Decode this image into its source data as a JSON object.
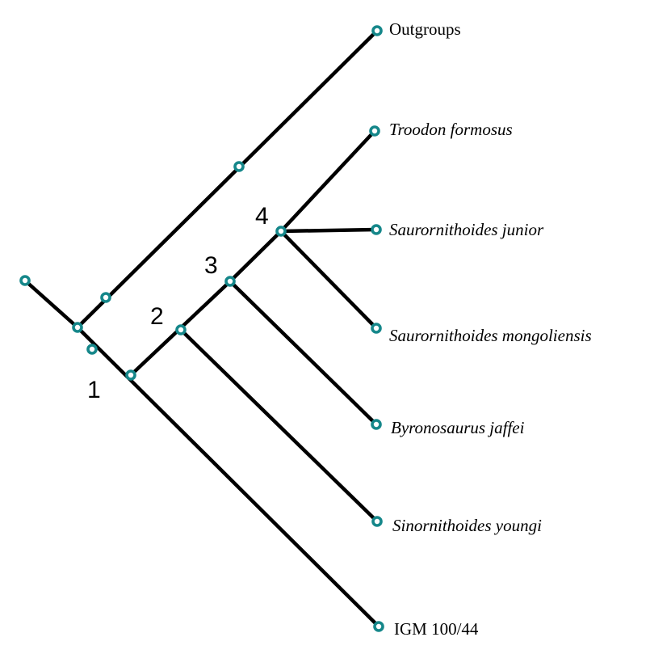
{
  "diagram": {
    "type": "cladogram",
    "colors": {
      "branch": "#000000",
      "node": "#15878a"
    },
    "taxa": [
      {
        "id": "outgroups",
        "label": "Outgroups",
        "italic": false
      },
      {
        "id": "troodon",
        "label": "Troodon formosus",
        "italic": true
      },
      {
        "id": "s-junior",
        "label": "Saurornithoides junior",
        "italic": true
      },
      {
        "id": "s-mongoliensis",
        "label": "Saurornithoides mongoliensis",
        "italic": true
      },
      {
        "id": "byronosaurus",
        "label": "Byronosaurus jaffei",
        "italic": true
      },
      {
        "id": "sinornithoides",
        "label": "Sinornithoides youngi",
        "italic": true
      },
      {
        "id": "igm",
        "label": "IGM 100/44",
        "italic": false
      }
    ],
    "clade_labels": [
      "1",
      "2",
      "3",
      "4"
    ]
  }
}
